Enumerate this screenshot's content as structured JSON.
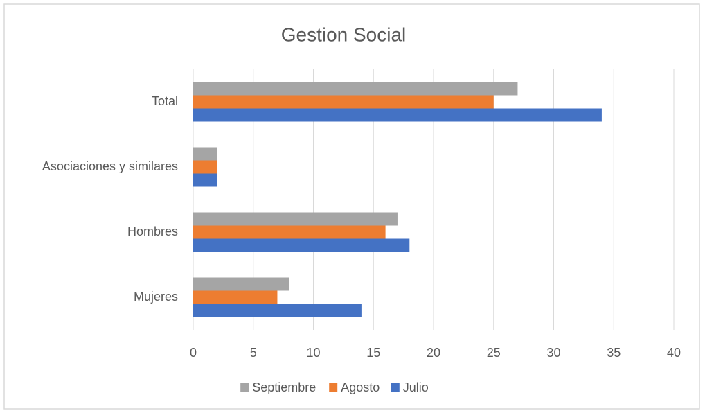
{
  "chart_data": {
    "type": "bar",
    "orientation": "horizontal",
    "title": "Gestion Social",
    "categories": [
      "Total",
      "Asociaciones y similares",
      "Hombres",
      "Mujeres"
    ],
    "series": [
      {
        "name": "Septiembre",
        "color": "#a5a5a5",
        "values": [
          27,
          2,
          17,
          8
        ]
      },
      {
        "name": "Agosto",
        "color": "#ed7d31",
        "values": [
          25,
          2,
          16,
          7
        ]
      },
      {
        "name": "Julio",
        "color": "#4472c4",
        "values": [
          34,
          2,
          18,
          14
        ]
      }
    ],
    "xlim": [
      0,
      40
    ],
    "xticks": [
      0,
      5,
      10,
      15,
      20,
      25,
      30,
      35,
      40
    ],
    "grid": true,
    "legend": "bottom"
  }
}
